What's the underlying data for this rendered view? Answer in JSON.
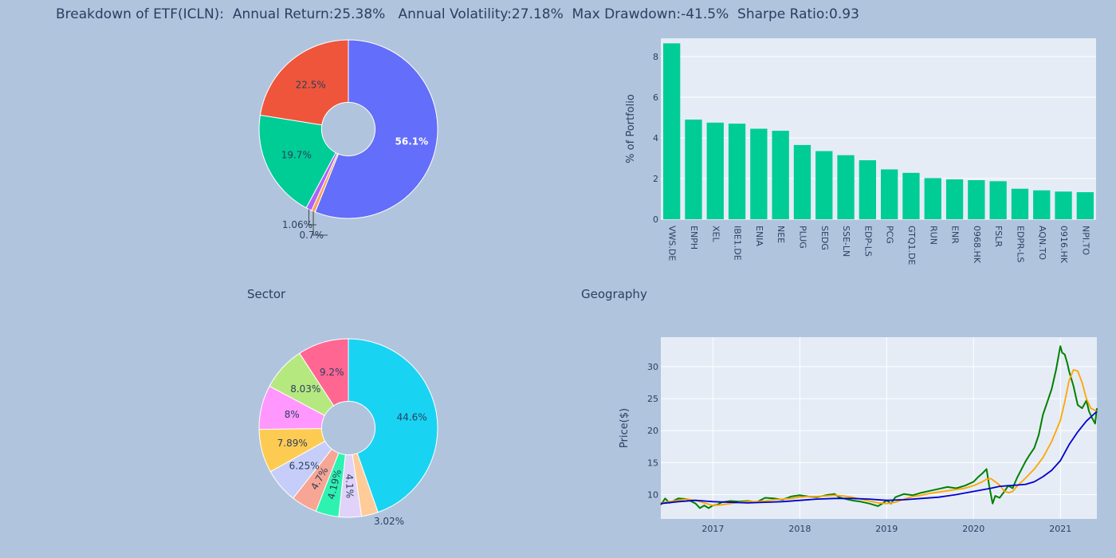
{
  "header": {
    "title": "Breakdown of ETF(ICLN):  Annual Return:25.38%   Annual Volatility:27.18%  Max Drawdown:-41.5%  Sharpe Ratio:0.93"
  },
  "sections": {
    "sector_title": "Sector",
    "geography_title": "Geography"
  },
  "chart_data": [
    {
      "type": "pie",
      "hole": 0.3,
      "slices": [
        {
          "label": "56.1%",
          "value": 56.1,
          "color": "#636efa",
          "label_color": "#ffffff"
        },
        {
          "label": "0.7%",
          "value": 0.7,
          "color": "#ffa15a",
          "label_color": "#2a3f5f"
        },
        {
          "label": "1.06%",
          "value": 1.06,
          "color": "#ab63fa",
          "label_color": "#2a3f5f"
        },
        {
          "label": "19.7%",
          "value": 19.7,
          "color": "#00cc96",
          "label_color": "#2a3f5f"
        },
        {
          "label": "22.5%",
          "value": 22.5,
          "color": "#ef553b",
          "label_color": "#2a3f5f"
        }
      ]
    },
    {
      "type": "bar",
      "ylabel": "% of Portfolio",
      "ylim": [
        0,
        8.9
      ],
      "yticks": [
        0,
        2,
        4,
        6,
        8
      ],
      "color": "#00cc96",
      "categories": [
        "VWS.DE",
        "ENPH",
        "XEL",
        "IBE1.DE",
        "ENIA",
        "NEE",
        "PLUG",
        "SEDG",
        "SSE-LN",
        "EDP-LS",
        "PCG",
        "GTQ1.DE",
        "RUN",
        "ENR",
        "0968.HK",
        "FSLR",
        "EDPR-LS",
        "AQN.TO",
        "0916.HK",
        "NPI.TO"
      ],
      "values": [
        8.65,
        4.9,
        4.75,
        4.7,
        4.45,
        4.35,
        3.65,
        3.35,
        3.15,
        2.9,
        2.45,
        2.28,
        2.02,
        1.96,
        1.92,
        1.87,
        1.5,
        1.42,
        1.36,
        1.33
      ]
    },
    {
      "type": "pie",
      "hole": 0.3,
      "slices": [
        {
          "label": "44.6%",
          "value": 44.6,
          "color": "#19d3f3",
          "label_color": "#2a3f5f"
        },
        {
          "label": "3.02%",
          "value": 3.02,
          "color": "#fecb99",
          "label_color": "#2a3f5f"
        },
        {
          "label": "4.1%",
          "value": 4.1,
          "color": "#e0d2f8",
          "label_color": "#2a3f5f"
        },
        {
          "label": "4.19%",
          "value": 4.19,
          "color": "#2ef2b0",
          "label_color": "#2a3f5f"
        },
        {
          "label": "4.7%",
          "value": 4.7,
          "color": "#f7a594",
          "label_color": "#2a3f5f"
        },
        {
          "label": "6.25%",
          "value": 6.25,
          "color": "#c5cdf8",
          "label_color": "#2a3f5f"
        },
        {
          "label": "7.89%",
          "value": 7.89,
          "color": "#fecb52",
          "label_color": "#2a3f5f"
        },
        {
          "label": "8%",
          "value": 8.0,
          "color": "#ff97ff",
          "label_color": "#2a3f5f"
        },
        {
          "label": "8.03%",
          "value": 8.03,
          "color": "#b6e880",
          "label_color": "#2a3f5f"
        },
        {
          "label": "9.2%",
          "value": 9.2,
          "color": "#ff6692",
          "label_color": "#2a3f5f"
        }
      ]
    },
    {
      "type": "line",
      "ylabel": "Price($)",
      "xlim": [
        2016.4,
        2021.42
      ],
      "ylim": [
        6.2,
        34.6
      ],
      "xticks": [
        2017,
        2018,
        2019,
        2020,
        2021
      ],
      "yticks": [
        10,
        15,
        20,
        25,
        30
      ],
      "series": [
        {
          "color": "#008000",
          "x": [
            2016.4,
            2016.45,
            2016.5,
            2016.6,
            2016.7,
            2016.8,
            2016.85,
            2016.9,
            2016.95,
            2017.0,
            2017.05,
            2017.1,
            2017.2,
            2017.3,
            2017.4,
            2017.5,
            2017.6,
            2017.7,
            2017.8,
            2017.9,
            2018.0,
            2018.1,
            2018.2,
            2018.3,
            2018.4,
            2018.45,
            2018.5,
            2018.6,
            2018.7,
            2018.8,
            2018.9,
            2018.95,
            2019.0,
            2019.05,
            2019.1,
            2019.2,
            2019.3,
            2019.4,
            2019.5,
            2019.6,
            2019.7,
            2019.8,
            2019.9,
            2020.0,
            2020.05,
            2020.1,
            2020.15,
            2020.18,
            2020.22,
            2020.25,
            2020.3,
            2020.35,
            2020.4,
            2020.45,
            2020.5,
            2020.55,
            2020.6,
            2020.65,
            2020.7,
            2020.75,
            2020.8,
            2020.85,
            2020.9,
            2020.95,
            2021.0,
            2021.02,
            2021.05,
            2021.08,
            2021.1,
            2021.15,
            2021.2,
            2021.25,
            2021.3,
            2021.33,
            2021.36,
            2021.4,
            2021.42
          ],
          "y": [
            8.4,
            9.4,
            8.7,
            9.4,
            9.3,
            8.6,
            7.9,
            8.3,
            7.9,
            8.3,
            8.4,
            8.8,
            9.0,
            8.9,
            9.0,
            8.8,
            9.5,
            9.4,
            9.2,
            9.7,
            9.9,
            9.7,
            9.6,
            9.9,
            10.1,
            9.6,
            9.4,
            9.1,
            8.9,
            8.6,
            8.2,
            8.6,
            9.1,
            8.6,
            9.6,
            10.1,
            9.9,
            10.3,
            10.6,
            10.9,
            11.2,
            11.0,
            11.4,
            12.0,
            12.7,
            13.3,
            14.0,
            11.4,
            8.6,
            9.8,
            9.5,
            10.4,
            11.4,
            11.0,
            12.6,
            13.9,
            15.2,
            16.3,
            17.3,
            19.3,
            22.5,
            24.5,
            26.5,
            29.5,
            33.2,
            32.2,
            31.9,
            30.5,
            29.3,
            27.0,
            24.0,
            23.5,
            24.7,
            23.0,
            22.1,
            21.1,
            23.5
          ]
        },
        {
          "color": "#ffa500",
          "x": [
            2016.4,
            2016.5,
            2016.6,
            2016.7,
            2016.8,
            2016.9,
            2017.0,
            2017.1,
            2017.2,
            2017.3,
            2017.4,
            2017.5,
            2017.6,
            2017.7,
            2017.8,
            2017.9,
            2018.0,
            2018.1,
            2018.2,
            2018.3,
            2018.4,
            2018.5,
            2018.6,
            2018.7,
            2018.8,
            2018.9,
            2019.0,
            2019.1,
            2019.2,
            2019.3,
            2019.4,
            2019.5,
            2019.6,
            2019.7,
            2019.8,
            2019.9,
            2020.0,
            2020.1,
            2020.15,
            2020.2,
            2020.3,
            2020.35,
            2020.4,
            2020.45,
            2020.5,
            2020.6,
            2020.7,
            2020.8,
            2020.9,
            2021.0,
            2021.05,
            2021.1,
            2021.15,
            2021.2,
            2021.25,
            2021.3,
            2021.35,
            2021.42
          ],
          "y": [
            8.7,
            8.9,
            9.1,
            9.3,
            9.1,
            8.7,
            8.3,
            8.4,
            8.6,
            8.8,
            8.9,
            8.9,
            9.0,
            9.2,
            9.3,
            9.4,
            9.6,
            9.7,
            9.7,
            9.8,
            9.9,
            9.8,
            9.6,
            9.3,
            9.0,
            8.7,
            8.6,
            8.8,
            9.3,
            9.7,
            9.9,
            10.2,
            10.4,
            10.6,
            10.8,
            11.0,
            11.4,
            12.0,
            12.4,
            12.5,
            11.5,
            10.6,
            10.3,
            10.5,
            11.3,
            12.6,
            14.0,
            15.8,
            18.3,
            21.6,
            24.5,
            27.8,
            29.5,
            29.3,
            27.5,
            25.0,
            23.5,
            23.0
          ]
        },
        {
          "color": "#0000cd",
          "x": [
            2016.4,
            2016.6,
            2016.8,
            2017.0,
            2017.2,
            2017.4,
            2017.6,
            2017.8,
            2018.0,
            2018.2,
            2018.4,
            2018.6,
            2018.8,
            2019.0,
            2019.2,
            2019.4,
            2019.6,
            2019.8,
            2020.0,
            2020.2,
            2020.3,
            2020.4,
            2020.5,
            2020.6,
            2020.7,
            2020.8,
            2020.9,
            2021.0,
            2021.1,
            2021.2,
            2021.3,
            2021.42
          ],
          "y": [
            8.6,
            8.9,
            9.1,
            8.9,
            8.8,
            8.7,
            8.8,
            8.9,
            9.1,
            9.3,
            9.4,
            9.4,
            9.3,
            9.1,
            9.2,
            9.4,
            9.6,
            10.0,
            10.5,
            11.0,
            11.3,
            11.4,
            11.5,
            11.6,
            12.0,
            12.8,
            13.8,
            15.3,
            17.8,
            19.8,
            21.5,
            23.0
          ]
        }
      ]
    }
  ]
}
